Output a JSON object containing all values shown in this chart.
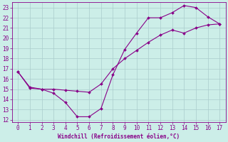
{
  "xlabel": "Windchill (Refroidissement éolien,°C)",
  "line1_x": [
    0,
    1,
    2,
    3,
    4,
    5,
    6,
    7,
    8,
    9,
    10,
    11,
    12,
    13,
    14,
    15,
    16,
    17
  ],
  "line1_y": [
    16.7,
    15.1,
    15.0,
    14.6,
    13.7,
    12.3,
    12.3,
    13.1,
    16.4,
    18.9,
    20.5,
    22.0,
    22.0,
    22.5,
    23.2,
    23.0,
    22.1,
    21.4
  ],
  "line2_x": [
    0,
    1,
    2,
    3,
    4,
    5,
    6,
    7,
    8,
    9,
    10,
    11,
    12,
    13,
    14,
    15,
    16,
    17
  ],
  "line2_y": [
    16.7,
    15.2,
    15.0,
    15.0,
    14.9,
    14.8,
    14.7,
    15.5,
    17.0,
    18.0,
    18.8,
    19.6,
    20.3,
    20.8,
    20.5,
    21.0,
    21.3,
    21.4
  ],
  "line_color": "#880088",
  "bg_color": "#cceee8",
  "grid_color": "#aacccc",
  "xlim": [
    -0.5,
    17.5
  ],
  "ylim": [
    11.8,
    23.5
  ],
  "yticks": [
    12,
    13,
    14,
    15,
    16,
    17,
    18,
    19,
    20,
    21,
    22,
    23
  ],
  "xticks": [
    0,
    1,
    2,
    3,
    4,
    5,
    6,
    7,
    8,
    9,
    10,
    11,
    12,
    13,
    14,
    15,
    16,
    17
  ],
  "tick_color": "#880088",
  "label_color": "#880088",
  "font_size_tick": 5.5,
  "font_size_label": 5.5
}
